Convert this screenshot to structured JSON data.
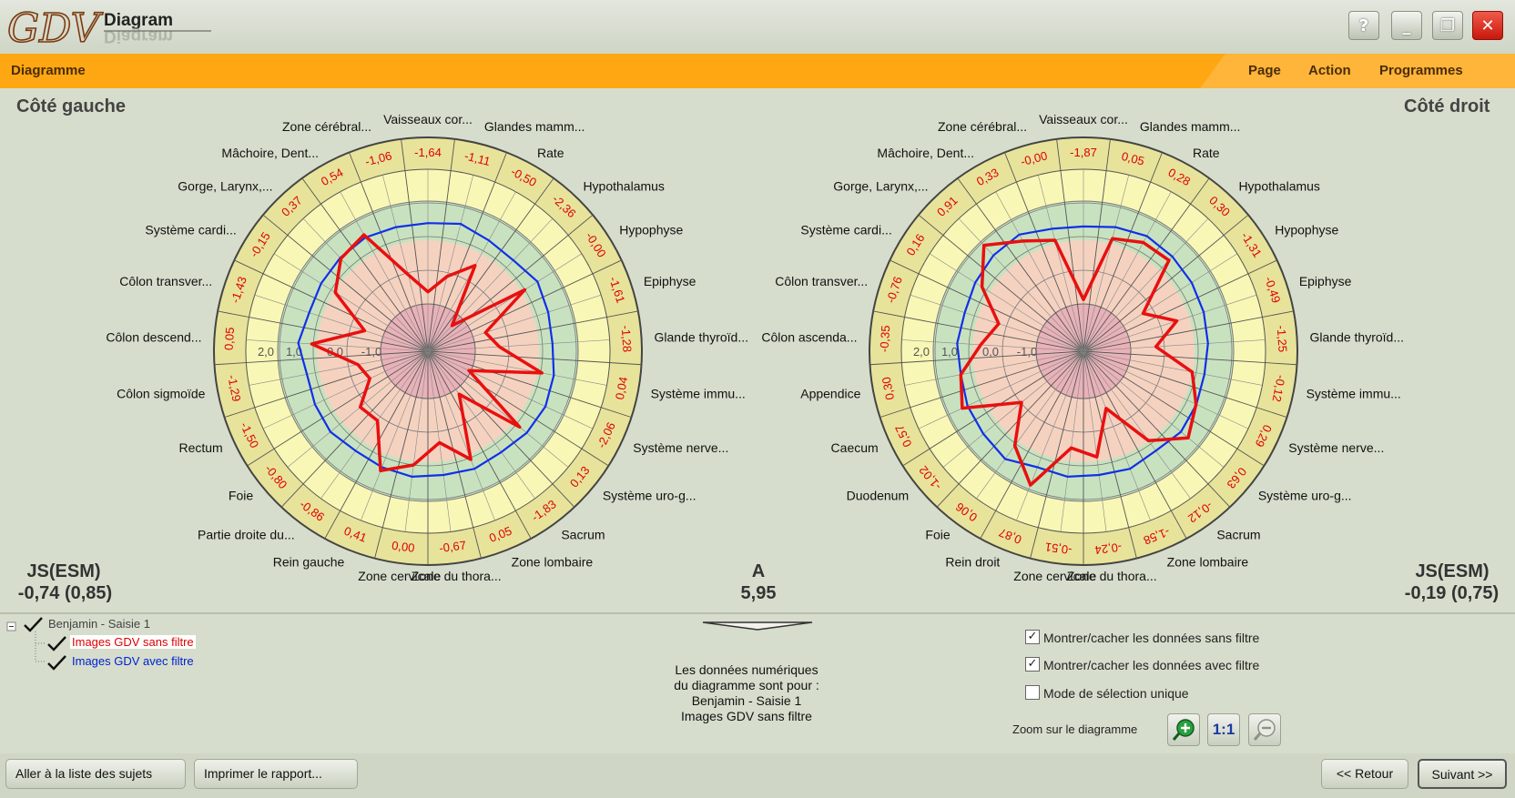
{
  "app": {
    "logo_text": "GDV",
    "title": "Diagram",
    "title_mirror": "Diagram"
  },
  "window_buttons": {
    "help": "?",
    "minimize": "_",
    "restore": "❐",
    "close": "✕"
  },
  "menubar": {
    "label": "Diagramme",
    "items": [
      "Page",
      "Action",
      "Programmes"
    ]
  },
  "left": {
    "title": "Côté gauche",
    "stat_label": "JS(ESM)",
    "stat_value": "-0,74 (0,85)"
  },
  "right": {
    "title": "Côté droit",
    "stat_label": "JS(ESM)",
    "stat_value": "-0,19 (0,75)"
  },
  "center": {
    "label": "A",
    "value": "5,95"
  },
  "ring_labels": [
    "2,0",
    "1,0",
    "0,0",
    "-1,0"
  ],
  "colors": {
    "orange": "#ffa712",
    "red_series": "#e81010",
    "blue_series": "#1030e8",
    "outer_ring": "#e7e39a",
    "yellow_ring": "#f9f7b5",
    "green_ring": "#c8e2c0",
    "pink_ring": "#f5d2c0",
    "inner_disc": "#e8b2b8"
  },
  "chart_data": [
    {
      "type": "radar",
      "title": "Côté gauche",
      "categories": [
        "Vaisseaux cor...",
        "Glandes mamm...",
        "Rate",
        "Hypothalamus",
        "Hypophyse",
        "Epiphyse",
        "Glande thyroïd...",
        "Système immu...",
        "Système nerve...",
        "Système uro-g...",
        "Sacrum",
        "Zone lombaire",
        "Zone du thora...",
        "Zone cervicale",
        "Rein gauche",
        "Partie droite du...",
        "Foie",
        "Rectum",
        "Côlon sigmoïde",
        "Côlon descend...",
        "Côlon transver...",
        "Système cardi...",
        "Gorge, Larynx,...",
        "Mâchoire, Dent...",
        "Zone cérébral..."
      ],
      "values_labels": [
        "-1,64",
        "-1,11",
        "-0,50",
        "-2,36",
        "-0,00",
        "-1,61",
        "-1,28",
        "0,04",
        "-2,06",
        "0,13",
        "-1,83",
        "0,05",
        "-0,67",
        "0,00",
        "0,41",
        "-0,86",
        "-0,80",
        "-1,50",
        "-1,29",
        "0,05",
        "-1,43",
        "-0,15",
        "0,37",
        "0,54",
        "-1,06"
      ],
      "series": [
        {
          "name": "Images GDV sans filtre",
          "values": [
            -1.64,
            -1.11,
            -0.5,
            -2.36,
            0.0,
            -1.61,
            -1.28,
            0.04,
            -2.06,
            0.13,
            -1.83,
            0.05,
            -0.67,
            0.0,
            0.41,
            -0.86,
            -0.8,
            -1.5,
            -1.29,
            0.05,
            -1.43,
            -0.15,
            0.37,
            0.54,
            -1.06
          ]
        },
        {
          "name": "Images GDV avec filtre",
          "values": [
            0.4,
            0.5,
            0.35,
            0.3,
            0.45,
            0.35,
            0.3,
            0.4,
            0.45,
            0.4,
            0.3,
            0.35,
            0.3,
            0.35,
            0.3,
            0.25,
            0.35,
            0.3,
            0.25,
            0.45,
            0.3,
            0.35,
            0.4,
            0.45,
            0.4
          ]
        }
      ],
      "rlim": [
        -2,
        2
      ]
    },
    {
      "type": "radar",
      "title": "Côté droit",
      "categories": [
        "Vaisseaux cor...",
        "Zone cérébral...",
        "Mâchoire, Dent...",
        "Gorge, Larynx,...",
        "Système cardi...",
        "Côlon transver...",
        "Côlon ascenda...",
        "Appendice",
        "Caecum",
        "Duodenum",
        "Foie",
        "Rein droit",
        "Zone cervicale",
        "Zone du thora...",
        "Zone lombaire",
        "Sacrum",
        "Système uro-g...",
        "Système nerve...",
        "Système immu...",
        "Glande thyroïd...",
        "Epiphyse",
        "Hypophyse",
        "Hypothalamus",
        "Rate",
        "Glandes mamm..."
      ],
      "values_labels": [
        "-1,87",
        "-0,00",
        "0,33",
        "0,91",
        "0,16",
        "-0,76",
        "-0,35",
        "0,30",
        "0,57",
        "-1,02",
        "0,06",
        "0,87",
        "-0,51",
        "-0,24",
        "-1,58",
        "-0,12",
        "0,63",
        "0,29",
        "-0,12",
        "-1,25",
        "-0,49",
        "-1,31",
        "0,30",
        "0,28",
        "0,05"
      ],
      "series": [
        {
          "name": "Images GDV sans filtre",
          "values": [
            -1.87,
            0.0,
            0.33,
            0.91,
            0.16,
            -0.76,
            -0.35,
            0.3,
            0.57,
            -1.02,
            0.06,
            0.87,
            -0.51,
            -0.24,
            -1.58,
            -0.12,
            0.63,
            0.29,
            -0.12,
            -1.25,
            -0.49,
            -1.31,
            0.3,
            0.28,
            0.05
          ]
        },
        {
          "name": "Images GDV avec filtre",
          "values": [
            0.3,
            0.35,
            0.55,
            0.5,
            0.4,
            0.3,
            0.35,
            0.3,
            0.4,
            0.45,
            0.55,
            0.3,
            0.35,
            0.3,
            0.35,
            0.25,
            0.35,
            0.3,
            0.25,
            0.3,
            0.35,
            0.4,
            0.45,
            0.5,
            0.4
          ]
        }
      ],
      "rlim": [
        -2,
        2
      ]
    }
  ],
  "tree": {
    "root": "Benjamin - Saisie 1",
    "child1": "Images GDV sans filtre",
    "child2": "Images GDV avec filtre"
  },
  "info": {
    "line1": "Les données numériques",
    "line2": "du diagramme sont pour :",
    "line3": "Benjamin - Saisie 1",
    "line4": "Images GDV sans filtre"
  },
  "options": {
    "opt1": "Montrer/cacher les données sans filtre",
    "opt2": "Montrer/cacher les données avec filtre",
    "opt3": "Mode de sélection unique",
    "opt1_checked": true,
    "opt2_checked": true,
    "opt3_checked": false
  },
  "zoom": {
    "label": "Zoom sur le diagramme",
    "one_to_one": "1:1"
  },
  "footer": {
    "subjects": "Aller à la liste des sujets",
    "print": "Imprimer le rapport...",
    "back": "<< Retour",
    "next": "Suivant >>"
  }
}
